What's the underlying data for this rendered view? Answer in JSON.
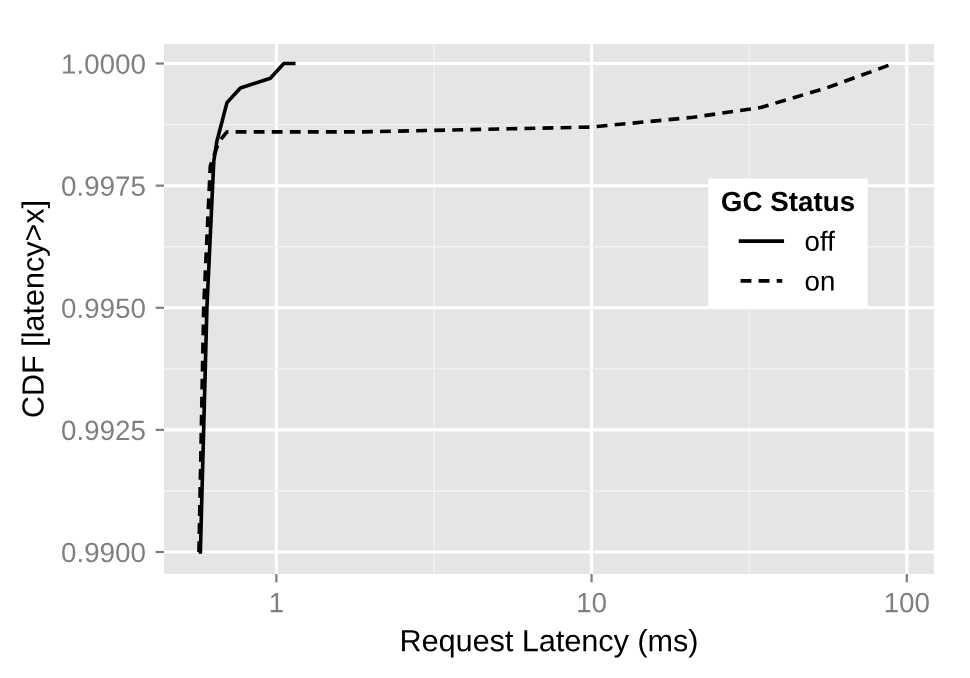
{
  "chart_data": {
    "type": "line",
    "xlabel": "Request Latency (ms)",
    "ylabel": "CDF [latency>x]",
    "legend_title": "GC Status",
    "legend": "top right",
    "log": "x",
    "grid": true,
    "xlim": [
      0.44,
      122
    ],
    "xticks": [
      1,
      10,
      100
    ],
    "ylim": [
      0.98955,
      1.0004
    ],
    "yticks": [
      {
        "value": 0.99,
        "label": "0.9900"
      },
      0.9925,
      {
        "value": 0.995,
        "label": "0.9950"
      },
      0.9975,
      {
        "value": 1.0,
        "label": "1.0000"
      }
    ],
    "series": [
      {
        "name": "off",
        "color": "#000000",
        "line_style": "solid",
        "x": [
          0.574,
          0.602,
          0.633,
          0.647,
          0.697,
          0.769,
          0.957,
          1.056,
          1.135
        ],
        "values": [
          0.99,
          0.995,
          0.998,
          0.9984,
          0.9992,
          0.9995,
          0.9997,
          1.0,
          1.0
        ]
      },
      {
        "name": "on",
        "color": "#000000",
        "line_style": "dashed",
        "x": [
          0.568,
          0.588,
          0.617,
          0.657,
          0.697,
          1.85,
          10,
          21,
          34.4,
          55.6,
          90.8
        ],
        "values": [
          0.99,
          0.995,
          0.9979,
          0.9984,
          0.9986,
          0.9986,
          0.9987,
          0.9989,
          0.9991,
          0.9995,
          1.0
        ]
      }
    ]
  }
}
